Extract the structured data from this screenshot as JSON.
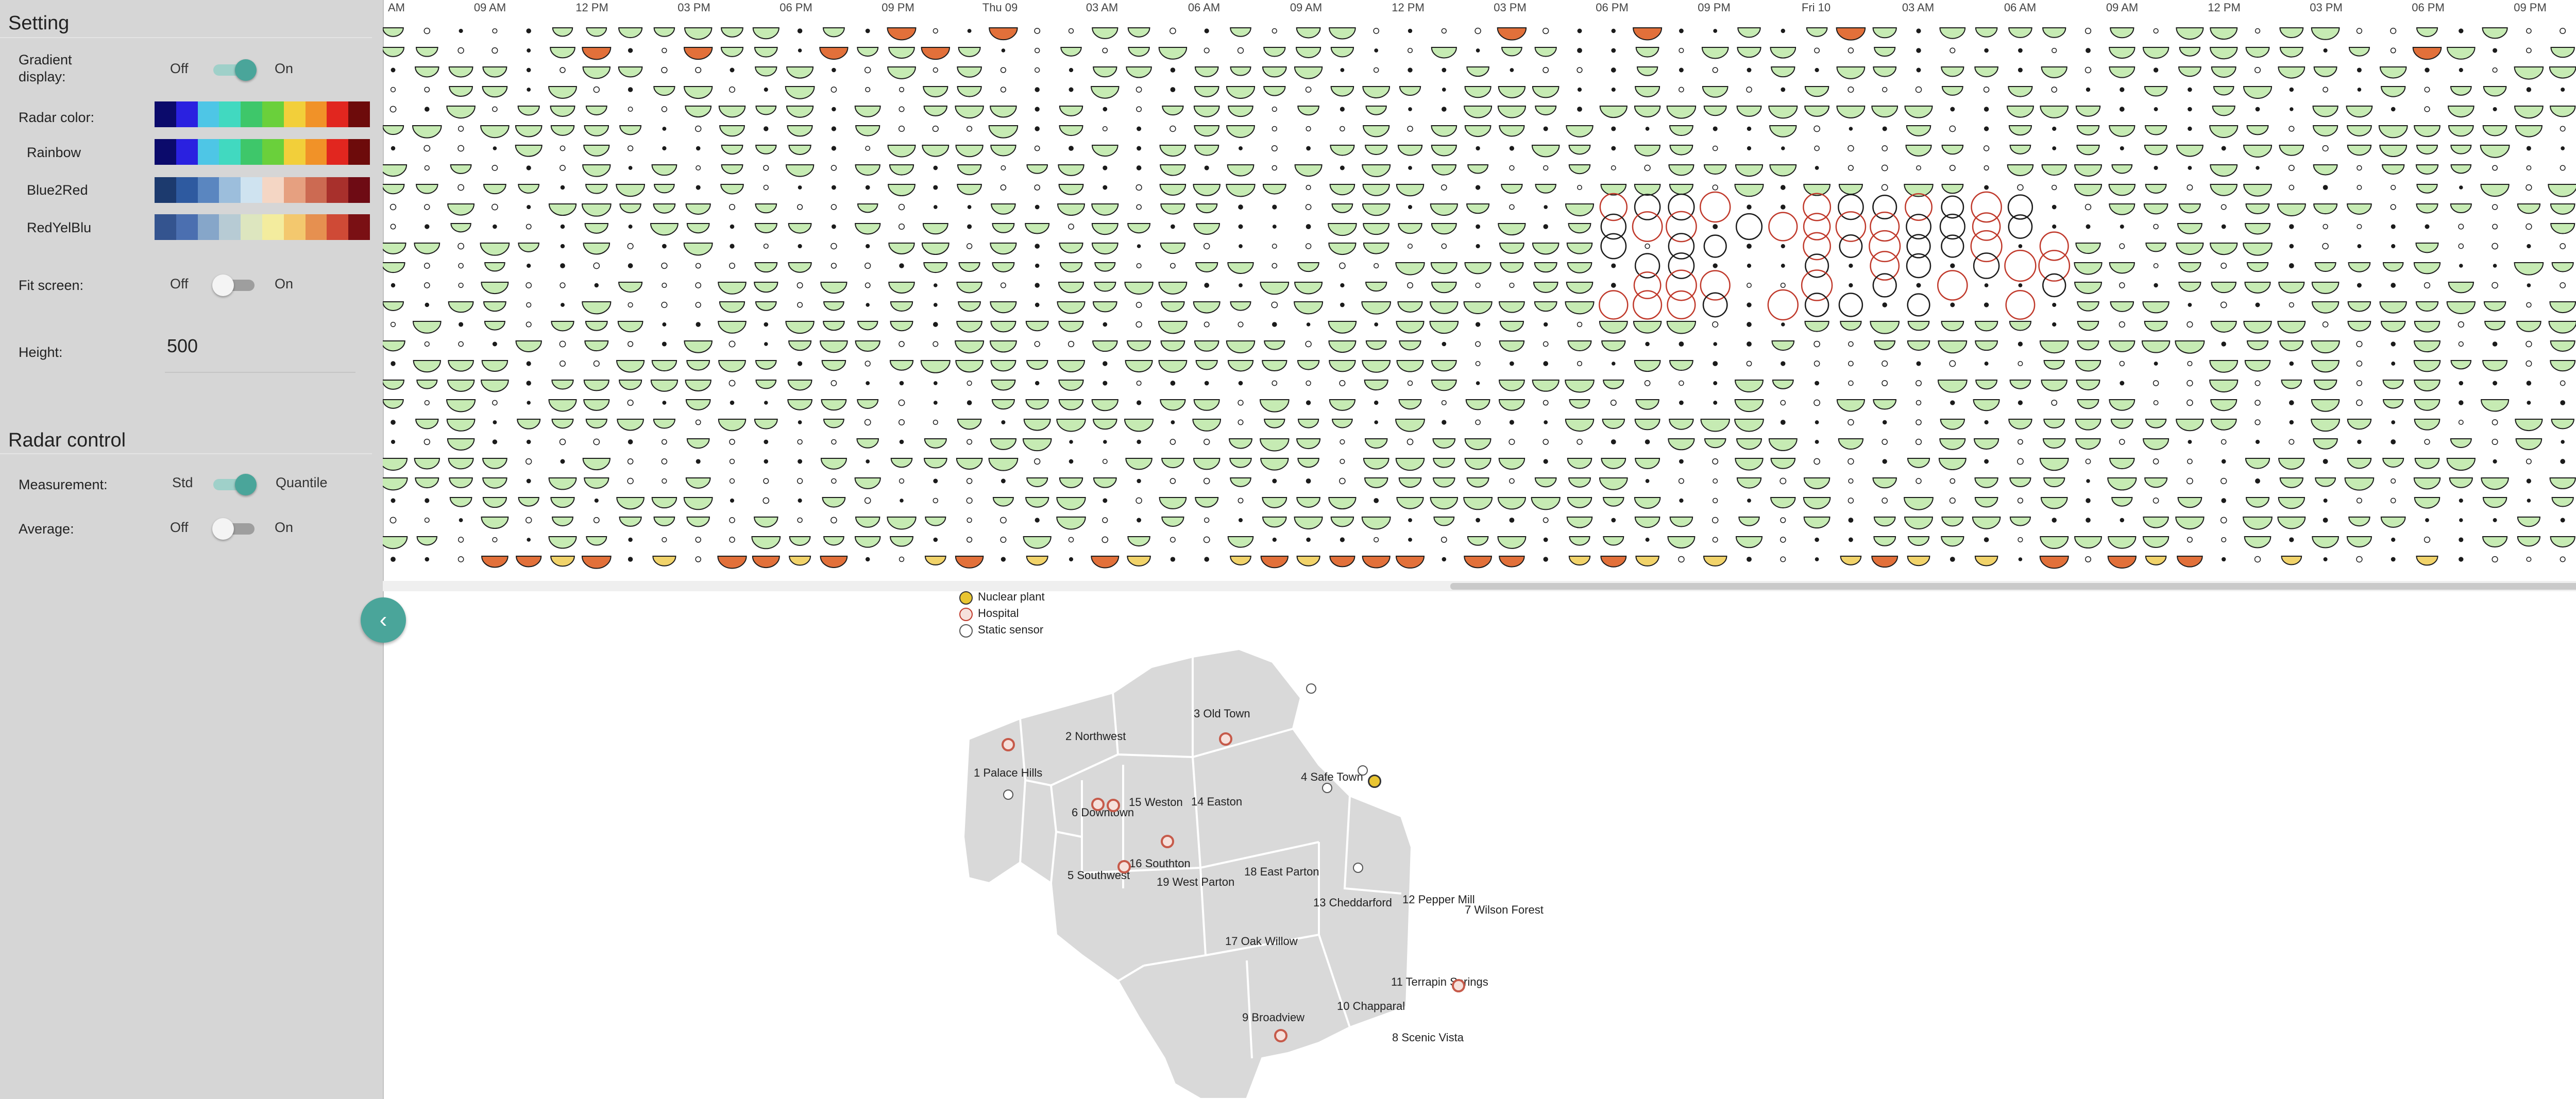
{
  "sidebar": {
    "setting_title": "Setting",
    "gradient": {
      "label": "Gradient display:",
      "off": "Off",
      "on": "On",
      "state": "on"
    },
    "radar_color": {
      "label": "Radar color:",
      "schemes": [
        {
          "name": "",
          "colors": [
            "#0b0a6b",
            "#2a21e0",
            "#4ec6e6",
            "#41d9c0",
            "#3ec76a",
            "#6ad03b",
            "#f2cf3a",
            "#f19228",
            "#e1261f",
            "#6d0b0b"
          ]
        },
        {
          "name": "Rainbow",
          "colors": [
            "#0b0a6b",
            "#2a21e0",
            "#4ec6e6",
            "#41d9c0",
            "#3ec76a",
            "#6ad03b",
            "#f2cf3a",
            "#f19228",
            "#e1261f",
            "#6d0b0b"
          ]
        },
        {
          "name": "Blue2Red",
          "colors": [
            "#1c3a6e",
            "#2e5aa0",
            "#5a86c0",
            "#9cbedc",
            "#cfe3f0",
            "#f4d6c4",
            "#e6a080",
            "#cc6a52",
            "#a8302c",
            "#6e0b14"
          ]
        },
        {
          "name": "RedYelBlu",
          "colors": [
            "#34548f",
            "#4b6fb0",
            "#86a6c9",
            "#b7cbd4",
            "#dde6bf",
            "#f3ec9e",
            "#f3c86e",
            "#e69050",
            "#cf4a36",
            "#7a1014"
          ]
        }
      ]
    },
    "fit_screen": {
      "label": "Fit screen:",
      "off": "Off",
      "on": "On",
      "state": "off"
    },
    "height": {
      "label": "Height:",
      "value": "500"
    },
    "radar_control_title": "Radar control",
    "measurement": {
      "label": "Measurement:",
      "off": "Std",
      "on": "Quantile",
      "state": "on"
    },
    "average": {
      "label": "Average:",
      "off": "Off",
      "on": "On",
      "state": "off"
    },
    "collapse_icon": "chevron-left-icon"
  },
  "timeline": {
    "ticks": [
      "AM",
      "09 AM",
      "12 PM",
      "03 PM",
      "06 PM",
      "09 PM",
      "Thu 09",
      "03 AM",
      "06 AM",
      "09 AM",
      "12 PM",
      "03 PM",
      "06 PM",
      "09 PM",
      "Fri 10",
      "03 AM",
      "06 AM",
      "09 AM",
      "12 PM",
      "03 PM",
      "06 PM",
      "09 PM"
    ],
    "glyph_colors": {
      "normal": "#c6ebb3",
      "warm": "#f1d36a",
      "hot": "#e2703a",
      "alert": "#c0392b",
      "outline": "#1b1b1b"
    }
  },
  "legend": [
    {
      "label": "Nuclear plant",
      "icon": "nuclear-plant-icon"
    },
    {
      "label": "Hospital",
      "icon": "hospital-icon"
    },
    {
      "label": "Static sensor",
      "icon": "static-sensor-icon"
    }
  ],
  "map": {
    "fill": "#d9d9d9",
    "stroke": "#ffffff",
    "neighborhoods": [
      "1 Palace Hills",
      "2 Northwest",
      "3 Old Town",
      "4 Safe Town",
      "5 Southwest",
      "6 Downtown",
      "7 Wilson Forest",
      "8 Scenic Vista",
      "9 Broadview",
      "10 Chapparal",
      "11 Terrapin Springs",
      "12 Pepper Mill",
      "13 Cheddarford",
      "14 Easton",
      "15 Weston",
      "16 Southton",
      "17 Oak Willow",
      "18 East Parton",
      "19 West Parton"
    ]
  }
}
